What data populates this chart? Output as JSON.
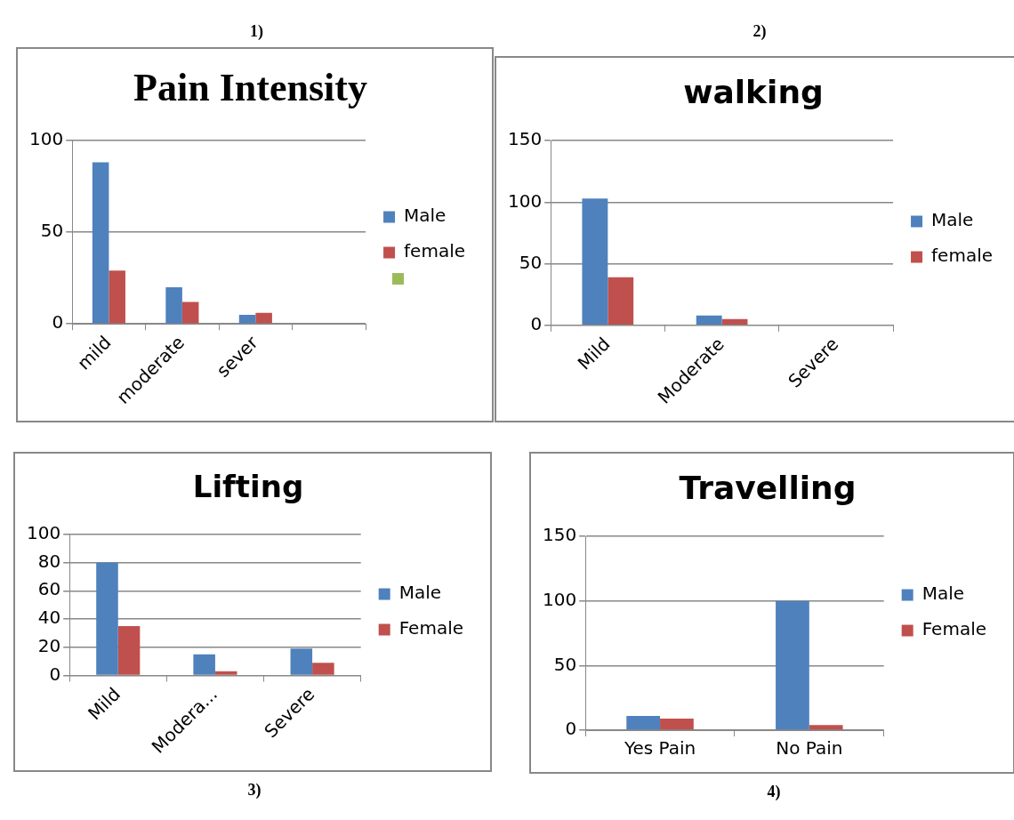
{
  "chart_data": [
    {
      "type": "bar",
      "title": "Pain Intensity",
      "categories": [
        "mild",
        "moderate",
        "sever",
        null
      ],
      "series": [
        {
          "name": "Male",
          "color": "#4f81bd",
          "values": [
            88,
            20,
            5,
            null
          ]
        },
        {
          "name": "female",
          "color": "#c0504d",
          "values": [
            29,
            12,
            6,
            null
          ]
        }
      ],
      "ylim": [
        0,
        100
      ],
      "yticks": [
        0,
        50,
        100
      ],
      "grid": "y",
      "legend": "right",
      "annotations": [
        "1)"
      ]
    },
    {
      "type": "bar",
      "title": "walking",
      "categories": [
        "Mild",
        "Moderate",
        "Severe"
      ],
      "series": [
        {
          "name": "Male",
          "color": "#4f81bd",
          "values": [
            103,
            8,
            0
          ]
        },
        {
          "name": "female",
          "color": "#c0504d",
          "values": [
            39,
            5,
            0
          ]
        }
      ],
      "ylim": [
        0,
        150
      ],
      "yticks": [
        0,
        50,
        100,
        150
      ],
      "grid": "y",
      "legend": "right",
      "annotations": [
        "2)"
      ]
    },
    {
      "type": "bar",
      "title": "Lifting",
      "categories": [
        "Mild",
        "Modera...",
        "Severe"
      ],
      "series": [
        {
          "name": "Male",
          "color": "#4f81bd",
          "values": [
            80,
            15,
            19
          ]
        },
        {
          "name": "Female",
          "color": "#c0504d",
          "values": [
            35,
            3,
            9
          ]
        }
      ],
      "ylim": [
        0,
        100
      ],
      "yticks": [
        0,
        20,
        40,
        60,
        80,
        100
      ],
      "grid": "y",
      "legend": "right",
      "annotations": [
        "3)"
      ]
    },
    {
      "type": "bar",
      "title": "Travelling",
      "categories": [
        "Yes Pain",
        "No Pain"
      ],
      "series": [
        {
          "name": "Male",
          "color": "#4f81bd",
          "values": [
            11,
            100
          ]
        },
        {
          "name": "Female",
          "color": "#c0504d",
          "values": [
            9,
            4
          ]
        }
      ],
      "ylim": [
        0,
        150
      ],
      "yticks": [
        0,
        50,
        100,
        150
      ],
      "grid": "y",
      "legend": "right",
      "annotations": [
        "4)"
      ]
    }
  ]
}
